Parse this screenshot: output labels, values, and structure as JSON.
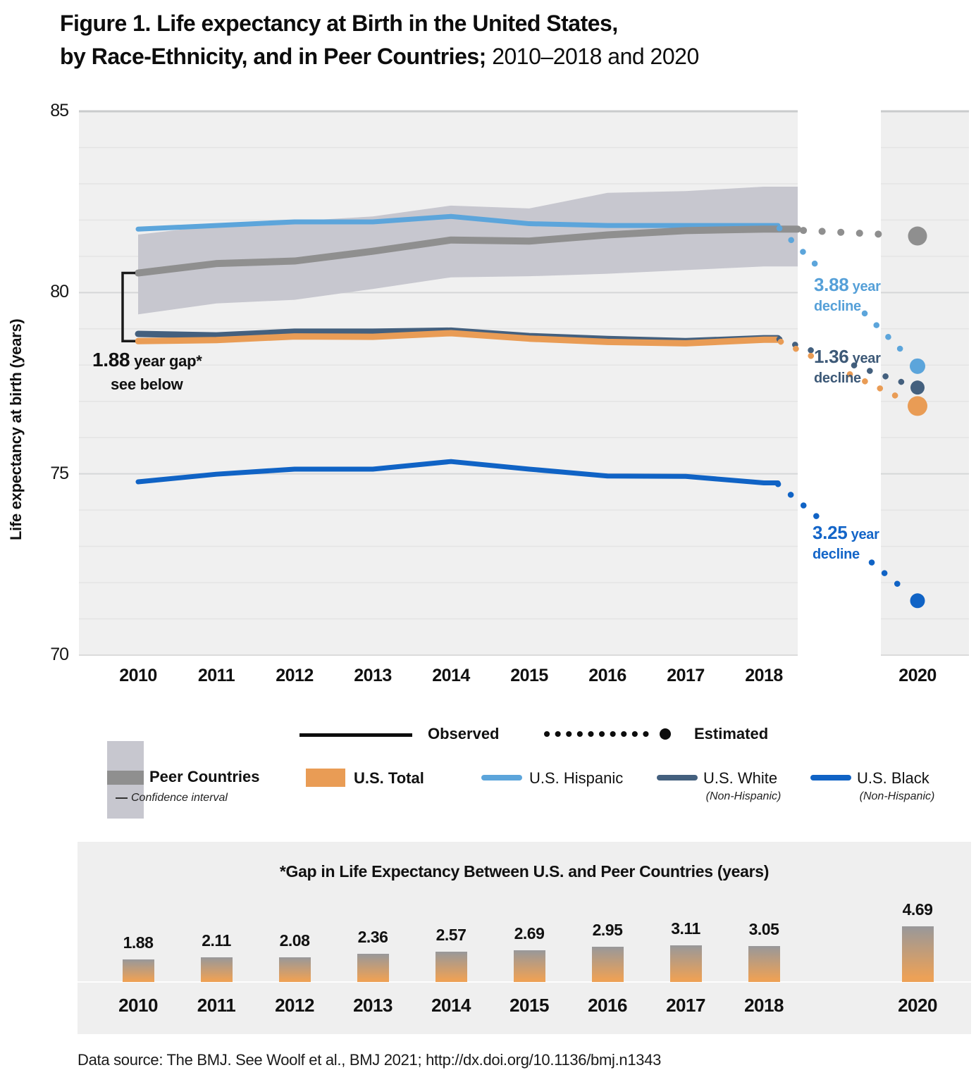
{
  "title": {
    "line1": "Figure 1. Life expectancy at Birth in the United States,",
    "line2_bold": "by Race-Ethnicity, and in Peer Countries;",
    "line2_regular": "2010–2018 and 2020"
  },
  "y_axis": {
    "label": "Life expectancy at birth (years)",
    "ticks": [
      85,
      80,
      75,
      70
    ]
  },
  "legend": {
    "observed": "Observed",
    "estimated": "Estimated",
    "peer": {
      "label": "Peer Countries",
      "sub": "Confidence interval"
    },
    "total": {
      "label": "U.S. Total"
    },
    "hispanic": {
      "label": "U.S. Hispanic"
    },
    "white": {
      "label": "U.S. White",
      "sub": "(Non-Hispanic)"
    },
    "black": {
      "label": "U.S. Black",
      "sub": "(Non-Hispanic)"
    }
  },
  "annotations": {
    "gap": {
      "big": "1.88",
      "rest": " year gap*",
      "line2": "see below"
    }
  },
  "chart_data": {
    "type": "line",
    "title": "Life expectancy at Birth in the United States, by Race-Ethnicity, and in Peer Countries; 2010–2018 and 2020",
    "ylabel": "Life expectancy at birth (years)",
    "ylim": [
      70,
      85
    ],
    "x": [
      2010,
      2011,
      2012,
      2013,
      2014,
      2015,
      2016,
      2017,
      2018
    ],
    "x_estimated": 2020,
    "series": [
      {
        "name": "Peer Countries",
        "color": "#8F8F8F",
        "band_color": "#C7C7CF",
        "values": [
          80.54,
          80.8,
          80.87,
          81.14,
          81.45,
          81.42,
          81.59,
          81.71,
          81.75
        ],
        "band_upper": [
          81.6,
          81.85,
          81.97,
          82.1,
          82.4,
          82.32,
          82.75,
          82.8,
          82.92
        ],
        "band_lower": [
          79.4,
          79.7,
          79.8,
          80.1,
          80.42,
          80.45,
          80.52,
          80.62,
          80.72
        ],
        "est_2020": 81.56
      },
      {
        "name": "U.S. Total",
        "color": "#E99C55",
        "values": [
          78.66,
          78.69,
          78.79,
          78.78,
          78.88,
          78.73,
          78.64,
          78.6,
          78.7
        ],
        "est_2020": 76.87
      },
      {
        "name": "U.S. Hispanic",
        "color": "#5CA5DB",
        "values": [
          81.75,
          81.85,
          81.95,
          81.95,
          82.1,
          81.9,
          81.85,
          81.85,
          81.85
        ],
        "est_2020": 77.97,
        "decline": {
          "num": "3.88",
          "suffix": " year",
          "line2": "decline",
          "color": "#56A0D8"
        }
      },
      {
        "name": "U.S. White (Non-Hispanic)",
        "color": "#44607E",
        "values": [
          78.86,
          78.82,
          78.92,
          78.92,
          78.95,
          78.8,
          78.72,
          78.66,
          78.74
        ],
        "est_2020": 77.38,
        "decline": {
          "num": "1.36",
          "suffix": " year",
          "line2": "decline",
          "color": "#3D5977"
        }
      },
      {
        "name": "U.S. Black (Non-Hispanic)",
        "color": "#1063C5",
        "values": [
          74.78,
          74.99,
          75.13,
          75.13,
          75.34,
          75.13,
          74.94,
          74.93,
          74.75
        ],
        "est_2020": 71.5,
        "decline": {
          "num": "3.25",
          "suffix": " year",
          "line2": "decline",
          "color": "#1365C8"
        }
      }
    ],
    "bar_chart": {
      "type": "bar",
      "title": "*Gap in Life Expectancy Between U.S. and Peer Countries (years)",
      "categories": [
        "2010",
        "2011",
        "2012",
        "2013",
        "2014",
        "2015",
        "2016",
        "2017",
        "2018",
        "2020"
      ],
      "values": [
        1.88,
        2.11,
        2.08,
        2.36,
        2.57,
        2.69,
        2.95,
        3.11,
        3.05,
        4.69
      ],
      "gradient_top": "#98989A",
      "gradient_bottom": "#ECA157"
    }
  },
  "footer": {
    "text": "Data source: The BMJ. See Woolf et al., BMJ 2021; http://dx.doi.org/10.1136/bmj.n1343"
  }
}
